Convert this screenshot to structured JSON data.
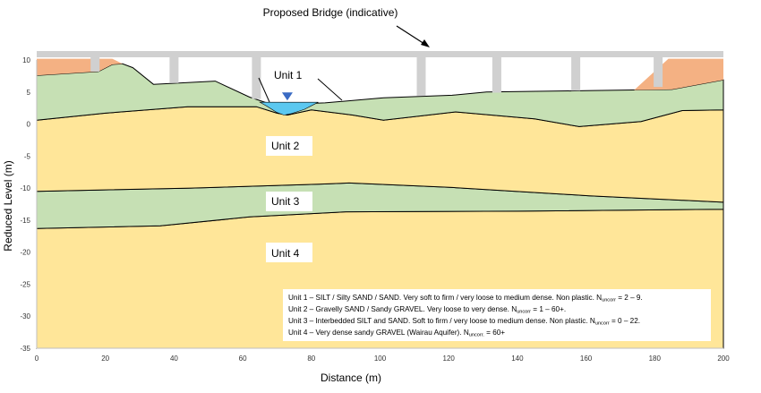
{
  "diagram": {
    "bridge_title": "Proposed Bridge (indicative)",
    "xlabel": "Distance (m)",
    "ylabel": "Reduced Level (m)",
    "xlim": [
      0,
      200
    ],
    "ylim": [
      -35,
      10
    ],
    "x_ticks": [
      "0",
      "20",
      "40",
      "60",
      "80",
      "100",
      "120",
      "140",
      "160",
      "180",
      "200"
    ],
    "y_ticks": [
      "10",
      "5",
      "0",
      "-5",
      "-10",
      "-15",
      "-20",
      "-25",
      "-30",
      "-35"
    ],
    "unit_labels": [
      "Unit 1",
      "Unit 2",
      "Unit 3",
      "Unit 4"
    ],
    "legend": [
      {
        "text": "Unit 1 – SILT / Silty SAND / SAND. Very soft to firm / very loose to medium dense. Non plastic. N",
        "sub": "uncorr",
        "tail": " = 2 – 9."
      },
      {
        "text": "Unit 2 – Gravelly SAND / Sandy GRAVEL. Very loose to very dense. N",
        "sub": "uncorr",
        "tail": " = 1 – 60+."
      },
      {
        "text": "Unit 3 – Interbedded SILT and SAND. Soft to firm / very loose to medium dense. Non plastic. N",
        "sub": "uncorr",
        "tail": " = 0 – 22."
      },
      {
        "text": "Unit 4 – Very dense sandy GRAVEL (Wairau Aquifer). N",
        "sub": "uncorr.",
        "tail": " = 60+"
      }
    ],
    "colors": {
      "unit1": "#c6e0b4",
      "unit2": "#ffe699",
      "unit3": "#c6e0b4",
      "unit4": "#ffe699",
      "fill_embankment": "#f4b183",
      "water": "#5bc8f0",
      "bridge": "#d0d0d0",
      "outline": "#000000"
    }
  }
}
